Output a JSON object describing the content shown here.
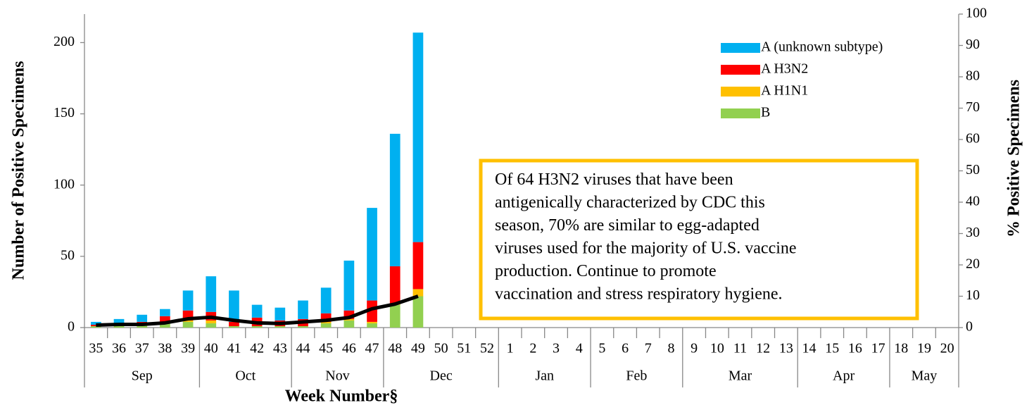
{
  "chart_data": {
    "type": "bar",
    "stacked": true,
    "x_title": "Week Number§",
    "y_title": "Number of Positive Specimens",
    "y2_title": "% Positive Specimens",
    "categories": [
      "35",
      "36",
      "37",
      "38",
      "39",
      "40",
      "41",
      "42",
      "43",
      "44",
      "45",
      "46",
      "47",
      "48",
      "49",
      "50",
      "51",
      "52",
      "1",
      "2",
      "3",
      "4",
      "5",
      "6",
      "7",
      "8",
      "9",
      "10",
      "11",
      "12",
      "13",
      "14",
      "15",
      "16",
      "17",
      "18",
      "19",
      "20"
    ],
    "groups": [
      "Sep",
      null,
      null,
      null,
      null,
      "Oct",
      null,
      null,
      null,
      "Nov",
      null,
      null,
      null,
      "Dec",
      null,
      null,
      null,
      null,
      "Jan",
      null,
      null,
      null,
      "Feb",
      null,
      null,
      null,
      "Mar",
      null,
      null,
      null,
      null,
      "Apr",
      null,
      null,
      null,
      "May",
      null,
      null
    ],
    "series": [
      {
        "name": "B",
        "color": "#92d050",
        "values": [
          1,
          1,
          2,
          3,
          4,
          3,
          1,
          1,
          1,
          1,
          3,
          5,
          3,
          16,
          22,
          null,
          null,
          null,
          null,
          null,
          null,
          null,
          null,
          null,
          null,
          null,
          null,
          null,
          null,
          null,
          null,
          null,
          null,
          null,
          null,
          null,
          null,
          null
        ]
      },
      {
        "name": "A H1N1",
        "color": "#ffc000",
        "values": [
          0,
          0,
          0,
          0,
          1,
          2,
          0,
          0,
          0,
          0,
          1,
          1,
          1,
          1,
          5,
          null,
          null,
          null,
          null,
          null,
          null,
          null,
          null,
          null,
          null,
          null,
          null,
          null,
          null,
          null,
          null,
          null,
          null,
          null,
          null,
          null,
          null,
          null
        ]
      },
      {
        "name": "A H3N2",
        "color": "#ff0000",
        "values": [
          1,
          2,
          2,
          5,
          7,
          6,
          3,
          6,
          4,
          5,
          6,
          6,
          15,
          26,
          33,
          null,
          null,
          null,
          null,
          null,
          null,
          null,
          null,
          null,
          null,
          null,
          null,
          null,
          null,
          null,
          null,
          null,
          null,
          null,
          null,
          null,
          null,
          null
        ]
      },
      {
        "name": "A (unknown subtype)",
        "color": "#00b0f0",
        "values": [
          2,
          3,
          5,
          5,
          14,
          25,
          22,
          9,
          9,
          13,
          18,
          35,
          65,
          93,
          147,
          null,
          null,
          null,
          null,
          null,
          null,
          null,
          null,
          null,
          null,
          null,
          null,
          null,
          null,
          null,
          null,
          null,
          null,
          null,
          null,
          null,
          null,
          null
        ]
      }
    ],
    "line": {
      "color": "#000000",
      "axis": "y2",
      "values": [
        0.8,
        1,
        1,
        1.5,
        2.8,
        3.3,
        2.3,
        1.5,
        1.3,
        1.8,
        2.3,
        3.2,
        6,
        7.5,
        10,
        null,
        null,
        null,
        null,
        null,
        null,
        null,
        null,
        null,
        null,
        null,
        null,
        null,
        null,
        null,
        null,
        null,
        null,
        null,
        null,
        null,
        null,
        null
      ]
    },
    "ylim": [
      0,
      220
    ],
    "yticks": [
      0,
      50,
      100,
      150,
      200
    ],
    "y2lim": [
      0,
      100
    ],
    "y2ticks": [
      0,
      10,
      20,
      30,
      40,
      50,
      60,
      70,
      80,
      90,
      100
    ],
    "annotation": [
      "Of 64 H3N2 viruses that have been",
      "antigenically characterized by CDC this",
      "season, 70% are similar to egg-adapted",
      "viruses used for the majority of U.S. vaccine",
      "production. Continue to promote",
      "vaccination and stress respiratory hygiene."
    ],
    "annotation_border": "#ffc000"
  }
}
